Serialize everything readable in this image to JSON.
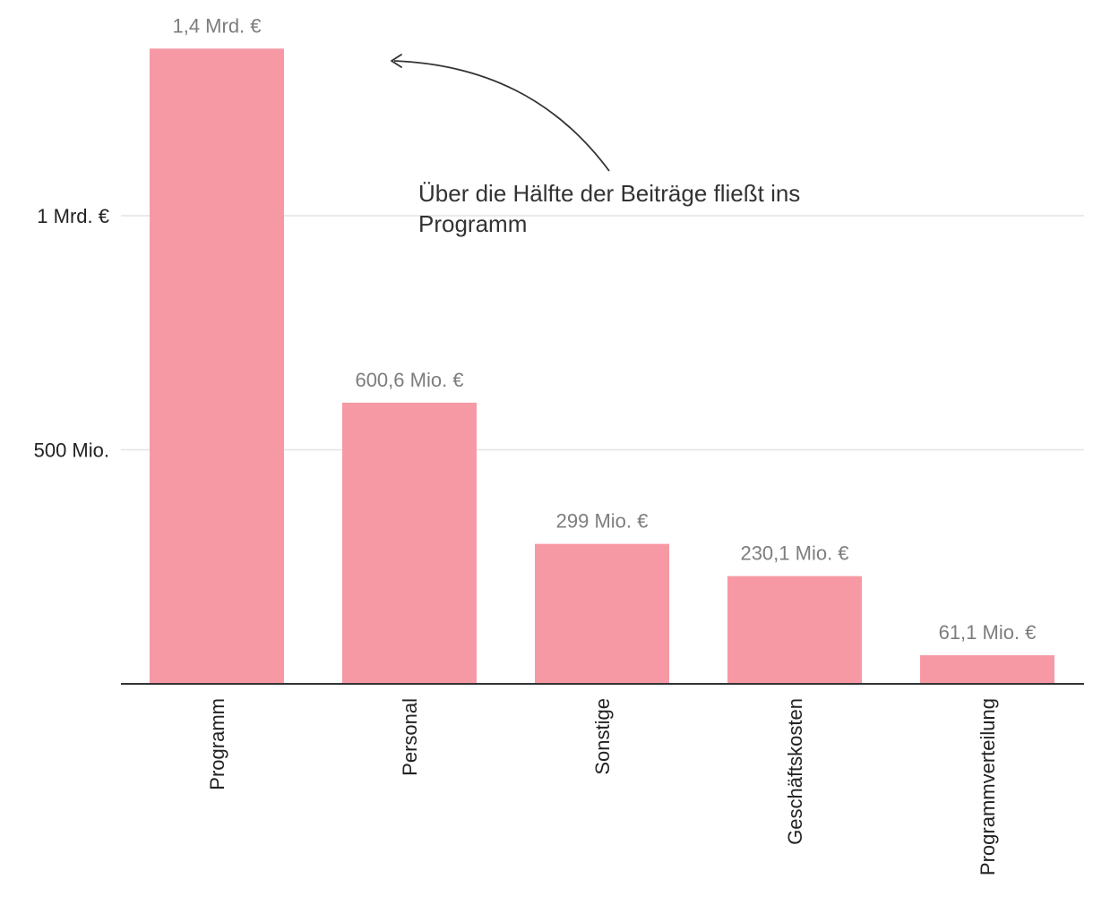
{
  "chart_data": {
    "type": "bar",
    "categories": [
      "Programm",
      "Personal",
      "Sonstige",
      "Geschäftskosten",
      "Programmverteilung"
    ],
    "values": [
      1357,
      600.6,
      299,
      230.1,
      61.1
    ],
    "data_labels": [
      "1,4 Mrd. €",
      "600,6 Mio. €",
      "299 Mio. €",
      "230,1 Mio. €",
      "61,1 Mio. €"
    ],
    "y_ticks": [
      {
        "value": 500,
        "label": "500 Mio."
      },
      {
        "value": 1000,
        "label": "1 Mrd. €"
      }
    ],
    "ylim": [
      0,
      1400
    ],
    "grid": true,
    "bar_color": "#f799a4",
    "annotation": {
      "lines": [
        "Über die Hälfte der Beiträge fließt ins",
        "Programm"
      ]
    }
  }
}
